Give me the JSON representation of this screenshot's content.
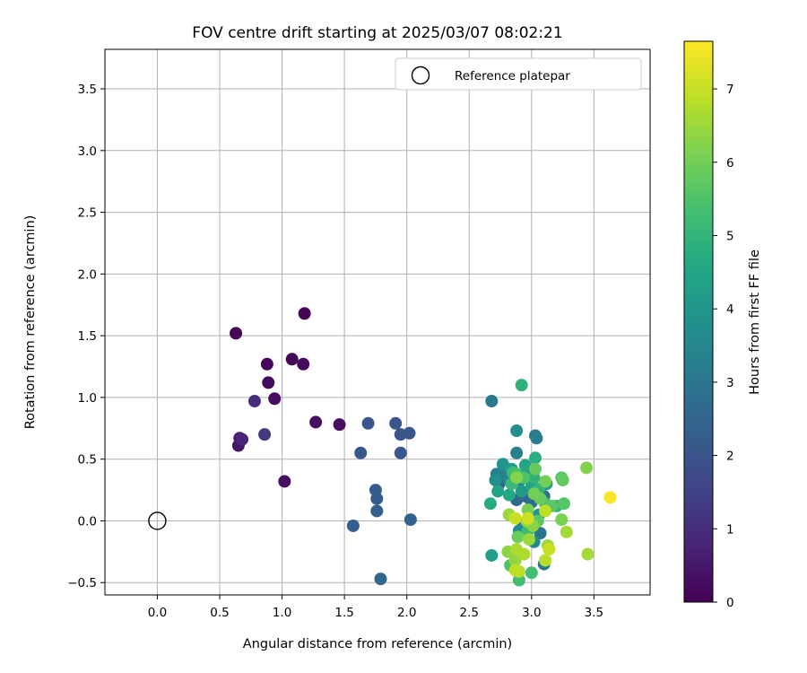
{
  "chart_data": {
    "type": "scatter",
    "title": "FOV centre drift starting at 2025/03/07 08:02:21",
    "xlabel": "Angular distance from reference (arcmin)",
    "ylabel": "Rotation from reference (arcmin)",
    "xlim": [
      -0.42,
      3.95
    ],
    "ylim": [
      -0.6,
      3.82
    ],
    "xticks": [
      "0.0",
      "0.5",
      "1.0",
      "1.5",
      "2.0",
      "2.5",
      "3.0",
      "3.5"
    ],
    "yticks": [
      "−0.5",
      "0.0",
      "0.5",
      "1.0",
      "1.5",
      "2.0",
      "2.5",
      "3.0",
      "3.5"
    ],
    "grid": true,
    "legend": {
      "position": "top-right",
      "entries": [
        "Reference platepar"
      ]
    },
    "colorbar": {
      "label": "Hours from first FF file",
      "range": [
        0,
        7.65
      ],
      "ticks": [
        "0",
        "1",
        "2",
        "3",
        "4",
        "5",
        "6",
        "7"
      ],
      "colormap": "viridis"
    },
    "reference_point": {
      "x": 0.0,
      "y": 0.0,
      "label": "Reference platepar"
    },
    "points": [
      {
        "x": 0.63,
        "y": 1.52,
        "h": 0.1
      },
      {
        "x": 1.18,
        "y": 1.68,
        "h": 0.1
      },
      {
        "x": 0.88,
        "y": 1.27,
        "h": 0.15
      },
      {
        "x": 1.08,
        "y": 1.31,
        "h": 0.15
      },
      {
        "x": 1.17,
        "y": 1.27,
        "h": 0.2
      },
      {
        "x": 0.89,
        "y": 1.12,
        "h": 0.2
      },
      {
        "x": 0.94,
        "y": 0.99,
        "h": 0.25
      },
      {
        "x": 1.27,
        "y": 0.8,
        "h": 0.3
      },
      {
        "x": 1.46,
        "y": 0.78,
        "h": 0.3
      },
      {
        "x": 1.02,
        "y": 0.32,
        "h": 0.3
      },
      {
        "x": 0.65,
        "y": 0.61,
        "h": 0.45
      },
      {
        "x": 0.66,
        "y": 0.67,
        "h": 0.6
      },
      {
        "x": 0.68,
        "y": 0.66,
        "h": 0.8
      },
      {
        "x": 0.78,
        "y": 0.97,
        "h": 1.0
      },
      {
        "x": 0.86,
        "y": 0.7,
        "h": 1.3
      },
      {
        "x": 1.69,
        "y": 0.79,
        "h": 2.0
      },
      {
        "x": 1.91,
        "y": 0.79,
        "h": 2.0
      },
      {
        "x": 1.95,
        "y": 0.7,
        "h": 2.0
      },
      {
        "x": 2.02,
        "y": 0.71,
        "h": 2.0
      },
      {
        "x": 1.63,
        "y": 0.55,
        "h": 2.1
      },
      {
        "x": 1.95,
        "y": 0.55,
        "h": 2.1
      },
      {
        "x": 1.75,
        "y": 0.25,
        "h": 2.2
      },
      {
        "x": 1.76,
        "y": 0.18,
        "h": 2.2
      },
      {
        "x": 1.76,
        "y": 0.08,
        "h": 2.3
      },
      {
        "x": 1.57,
        "y": -0.04,
        "h": 2.3
      },
      {
        "x": 2.03,
        "y": 0.01,
        "h": 2.4
      },
      {
        "x": 1.79,
        "y": -0.47,
        "h": 2.5
      },
      {
        "x": 2.74,
        "y": 0.3,
        "h": 2.5
      },
      {
        "x": 2.88,
        "y": 0.17,
        "h": 2.6
      },
      {
        "x": 2.95,
        "y": 0.2,
        "h": 2.6
      },
      {
        "x": 3.0,
        "y": 0.15,
        "h": 2.7
      },
      {
        "x": 2.82,
        "y": 0.05,
        "h": 2.7
      },
      {
        "x": 3.1,
        "y": 0.2,
        "h": 2.8
      },
      {
        "x": 2.93,
        "y": -0.05,
        "h": 2.9
      },
      {
        "x": 3.07,
        "y": -0.1,
        "h": 3.0
      },
      {
        "x": 3.1,
        "y": -0.35,
        "h": 3.0
      },
      {
        "x": 2.68,
        "y": 0.97,
        "h": 3.1
      },
      {
        "x": 3.03,
        "y": 0.69,
        "h": 3.1
      },
      {
        "x": 3.04,
        "y": 0.67,
        "h": 3.2
      },
      {
        "x": 2.88,
        "y": 0.55,
        "h": 3.3
      },
      {
        "x": 2.72,
        "y": 0.38,
        "h": 3.3
      },
      {
        "x": 2.78,
        "y": 0.38,
        "h": 3.4
      },
      {
        "x": 2.82,
        "y": 0.33,
        "h": 3.5
      },
      {
        "x": 2.91,
        "y": 0.33,
        "h": 3.5
      },
      {
        "x": 2.96,
        "y": 0.38,
        "h": 3.6
      },
      {
        "x": 2.9,
        "y": -0.08,
        "h": 3.6
      },
      {
        "x": 3.02,
        "y": -0.17,
        "h": 3.7
      },
      {
        "x": 2.88,
        "y": 0.73,
        "h": 3.8
      },
      {
        "x": 2.71,
        "y": 0.33,
        "h": 3.8
      },
      {
        "x": 2.77,
        "y": 0.46,
        "h": 3.9
      },
      {
        "x": 3.06,
        "y": 0.05,
        "h": 4.0
      },
      {
        "x": 2.92,
        "y": 0.24,
        "h": 4.1
      },
      {
        "x": 3.12,
        "y": 0.3,
        "h": 4.2
      },
      {
        "x": 2.68,
        "y": -0.28,
        "h": 4.3
      },
      {
        "x": 2.84,
        "y": 0.42,
        "h": 4.3
      },
      {
        "x": 3.0,
        "y": 0.28,
        "h": 4.4
      },
      {
        "x": 2.73,
        "y": 0.24,
        "h": 4.4
      },
      {
        "x": 2.95,
        "y": 0.45,
        "h": 4.5
      },
      {
        "x": 2.82,
        "y": 0.21,
        "h": 4.6
      },
      {
        "x": 2.67,
        "y": 0.14,
        "h": 4.7
      },
      {
        "x": 3.03,
        "y": 0.51,
        "h": 4.8
      },
      {
        "x": 3.02,
        "y": 0.35,
        "h": 4.9
      },
      {
        "x": 2.92,
        "y": 1.1,
        "h": 4.9
      },
      {
        "x": 3.06,
        "y": 0.26,
        "h": 5.0
      },
      {
        "x": 3.2,
        "y": 0.12,
        "h": 5.0
      },
      {
        "x": 2.84,
        "y": 0.3,
        "h": 5.1
      },
      {
        "x": 2.98,
        "y": -0.03,
        "h": 5.1
      },
      {
        "x": 2.85,
        "y": 0.39,
        "h": 5.2
      },
      {
        "x": 2.97,
        "y": -0.08,
        "h": 5.2
      },
      {
        "x": 3.0,
        "y": -0.42,
        "h": 5.3
      },
      {
        "x": 2.9,
        "y": -0.48,
        "h": 5.3
      },
      {
        "x": 2.88,
        "y": 0.38,
        "h": 5.4
      },
      {
        "x": 3.11,
        "y": 0.14,
        "h": 5.4
      },
      {
        "x": 2.83,
        "y": -0.36,
        "h": 5.5
      },
      {
        "x": 2.94,
        "y": 0.35,
        "h": 5.5
      },
      {
        "x": 3.26,
        "y": 0.14,
        "h": 5.6
      },
      {
        "x": 3.24,
        "y": 0.35,
        "h": 5.6
      },
      {
        "x": 3.05,
        "y": 0.0,
        "h": 5.7
      },
      {
        "x": 3.16,
        "y": 0.12,
        "h": 5.7
      },
      {
        "x": 3.25,
        "y": 0.33,
        "h": 5.8
      },
      {
        "x": 3.03,
        "y": 0.42,
        "h": 5.8
      },
      {
        "x": 2.89,
        "y": -0.13,
        "h": 5.9
      },
      {
        "x": 3.07,
        "y": 0.18,
        "h": 5.9
      },
      {
        "x": 3.02,
        "y": 0.22,
        "h": 6.0
      },
      {
        "x": 3.11,
        "y": 0.32,
        "h": 6.0
      },
      {
        "x": 3.24,
        "y": 0.01,
        "h": 6.1
      },
      {
        "x": 2.97,
        "y": 0.09,
        "h": 6.1
      },
      {
        "x": 2.88,
        "y": 0.35,
        "h": 6.2
      },
      {
        "x": 3.44,
        "y": 0.43,
        "h": 6.2
      },
      {
        "x": 2.81,
        "y": -0.25,
        "h": 6.3
      },
      {
        "x": 3.01,
        "y": -0.04,
        "h": 6.3
      },
      {
        "x": 2.87,
        "y": -0.32,
        "h": 6.4
      },
      {
        "x": 2.96,
        "y": 0.0,
        "h": 6.4
      },
      {
        "x": 2.98,
        "y": -0.15,
        "h": 6.5
      },
      {
        "x": 3.13,
        "y": -0.2,
        "h": 6.5
      },
      {
        "x": 2.82,
        "y": 0.05,
        "h": 6.5
      },
      {
        "x": 3.28,
        "y": -0.09,
        "h": 6.6
      },
      {
        "x": 3.45,
        "y": -0.27,
        "h": 6.6
      },
      {
        "x": 2.88,
        "y": -0.23,
        "h": 6.7
      },
      {
        "x": 2.94,
        "y": -0.27,
        "h": 6.7
      },
      {
        "x": 3.11,
        "y": -0.32,
        "h": 6.8
      },
      {
        "x": 2.9,
        "y": -0.41,
        "h": 6.8
      },
      {
        "x": 2.87,
        "y": -0.4,
        "h": 6.9
      },
      {
        "x": 3.11,
        "y": 0.08,
        "h": 6.9
      },
      {
        "x": 3.14,
        "y": -0.23,
        "h": 7.0
      },
      {
        "x": 2.87,
        "y": 0.02,
        "h": 7.0
      },
      {
        "x": 2.97,
        "y": 0.02,
        "h": 7.1
      },
      {
        "x": 3.63,
        "y": 0.19,
        "h": 7.6
      }
    ]
  }
}
